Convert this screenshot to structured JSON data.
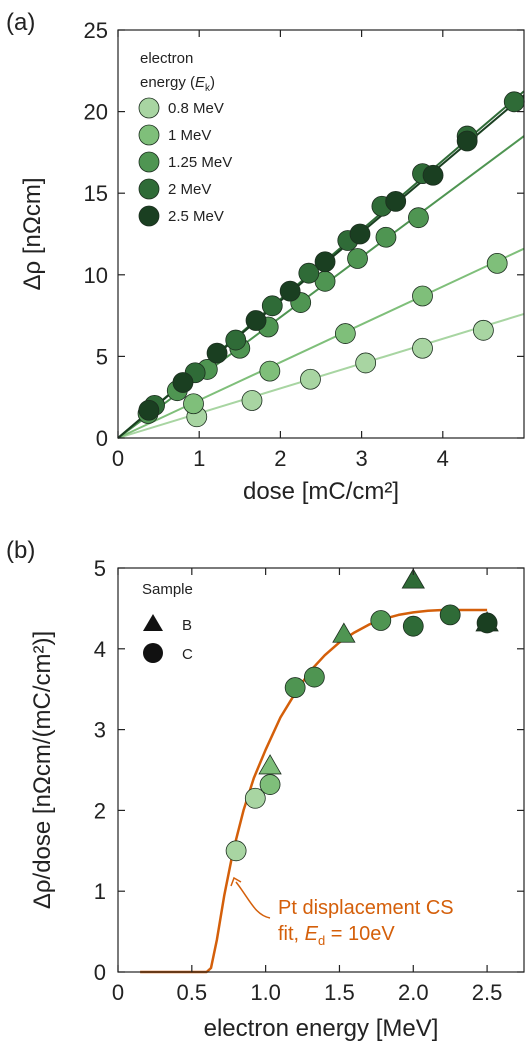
{
  "chart_data": [
    {
      "type": "scatter",
      "panel_label": "(a)",
      "xlabel": "dose [mC/cm²]",
      "ylabel": "Δρ [nΩcm]",
      "xlim": [
        0,
        5
      ],
      "ylim": [
        0,
        25
      ],
      "xticks": [
        "0",
        "1",
        "2",
        "3",
        "4"
      ],
      "yticks": [
        "0",
        "5",
        "10",
        "15",
        "20",
        "25"
      ],
      "legend_title_line1": "electron",
      "legend_title_line2": "energy (",
      "legend_title_var": "E",
      "legend_title_sub": "k",
      "legend_title_close": ")",
      "legend_position": "top-left",
      "grid": false,
      "series": [
        {
          "name": "0.8 MeV",
          "color": "#a8d5a2",
          "slope": 1.52,
          "x": [
            0.97,
            1.65,
            2.37,
            3.05,
            3.75,
            4.5
          ],
          "y": [
            1.3,
            2.3,
            3.6,
            4.6,
            5.5,
            6.6
          ]
        },
        {
          "name": "1 MeV",
          "color": "#7fbf7a",
          "slope": 2.32,
          "x": [
            0.93,
            1.87,
            2.8,
            3.75,
            4.67
          ],
          "y": [
            2.1,
            4.1,
            6.4,
            8.7,
            10.7
          ]
        },
        {
          "name": "1.25 MeV",
          "color": "#4f9552",
          "slope": 3.7,
          "x": [
            0.37,
            0.73,
            1.1,
            1.5,
            1.85,
            2.25,
            2.55,
            2.95,
            3.3,
            3.7
          ],
          "y": [
            1.5,
            2.9,
            4.2,
            5.5,
            6.8,
            8.3,
            9.6,
            11.0,
            12.3,
            13.5
          ]
        },
        {
          "name": "2 MeV",
          "color": "#2f6b37",
          "slope": 4.25,
          "x": [
            0.45,
            0.95,
            1.45,
            1.9,
            2.35,
            2.83,
            3.25,
            3.75,
            4.3,
            4.88
          ],
          "y": [
            2.0,
            4.0,
            6.0,
            8.1,
            10.1,
            12.1,
            14.2,
            16.2,
            18.5,
            20.6
          ]
        },
        {
          "name": "2.5 MeV",
          "color": "#1a3f21",
          "slope": 4.2,
          "x": [
            0.38,
            0.8,
            1.22,
            1.7,
            2.12,
            2.55,
            2.98,
            3.42,
            3.88,
            4.3
          ],
          "y": [
            1.7,
            3.4,
            5.2,
            7.2,
            9.0,
            10.8,
            12.5,
            14.5,
            16.1,
            18.2
          ]
        }
      ]
    },
    {
      "type": "scatter",
      "panel_label": "(b)",
      "xlabel": "electron energy [MeV]",
      "ylabel": "Δρ/dose [nΩcm/(mC/cm²)]",
      "xlim": [
        0,
        2.75
      ],
      "ylim": [
        0,
        5
      ],
      "xticks": [
        "0",
        "0.5",
        "1.0",
        "1.5",
        "2.0",
        "2.5"
      ],
      "yticks": [
        "0",
        "1",
        "2",
        "3",
        "4",
        "5"
      ],
      "legend_title": "Sample",
      "legend_position": "top-left",
      "grid": false,
      "series": [
        {
          "name": "B",
          "marker": "triangle",
          "color": "#2f6b37",
          "x": [
            1.03,
            1.53,
            2.0,
            2.5
          ],
          "y": [
            2.55,
            4.18,
            4.85,
            4.32
          ],
          "colors": [
            "#7fbf7a",
            "#4f9552",
            "#2f6b37",
            "#1a3f21"
          ]
        },
        {
          "name": "C",
          "marker": "circle",
          "color": "#4f9552",
          "x": [
            0.8,
            0.93,
            1.03,
            1.2,
            1.33,
            1.78,
            2.0,
            2.25,
            2.5
          ],
          "y": [
            1.5,
            2.15,
            2.32,
            3.52,
            3.65,
            4.35,
            4.28,
            4.42,
            4.32
          ],
          "colors": [
            "#a8d5a2",
            "#a8d5a2",
            "#7fbf7a",
            "#4f9552",
            "#4f9552",
            "#4f9552",
            "#2f6b37",
            "#2f6b37",
            "#1a3f21"
          ]
        }
      ],
      "fit": {
        "color": "#d45f0a",
        "label_line1": "Pt displacement CS",
        "label_line2_prefix": "fit, ",
        "label_var": "E",
        "label_sub": "d",
        "label_suffix": " = 10eV",
        "x": [
          0.15,
          0.6,
          0.63,
          0.67,
          0.72,
          0.78,
          0.85,
          0.92,
          1.0,
          1.1,
          1.2,
          1.3,
          1.4,
          1.5,
          1.6,
          1.7,
          1.8,
          1.9,
          2.0,
          2.1,
          2.2,
          2.3,
          2.5
        ],
        "y": [
          0.0,
          0.0,
          0.05,
          0.4,
          0.95,
          1.5,
          2.0,
          2.4,
          2.75,
          3.15,
          3.45,
          3.72,
          3.92,
          4.08,
          4.2,
          4.3,
          4.37,
          4.42,
          4.45,
          4.47,
          4.48,
          4.48,
          4.48
        ]
      }
    }
  ]
}
